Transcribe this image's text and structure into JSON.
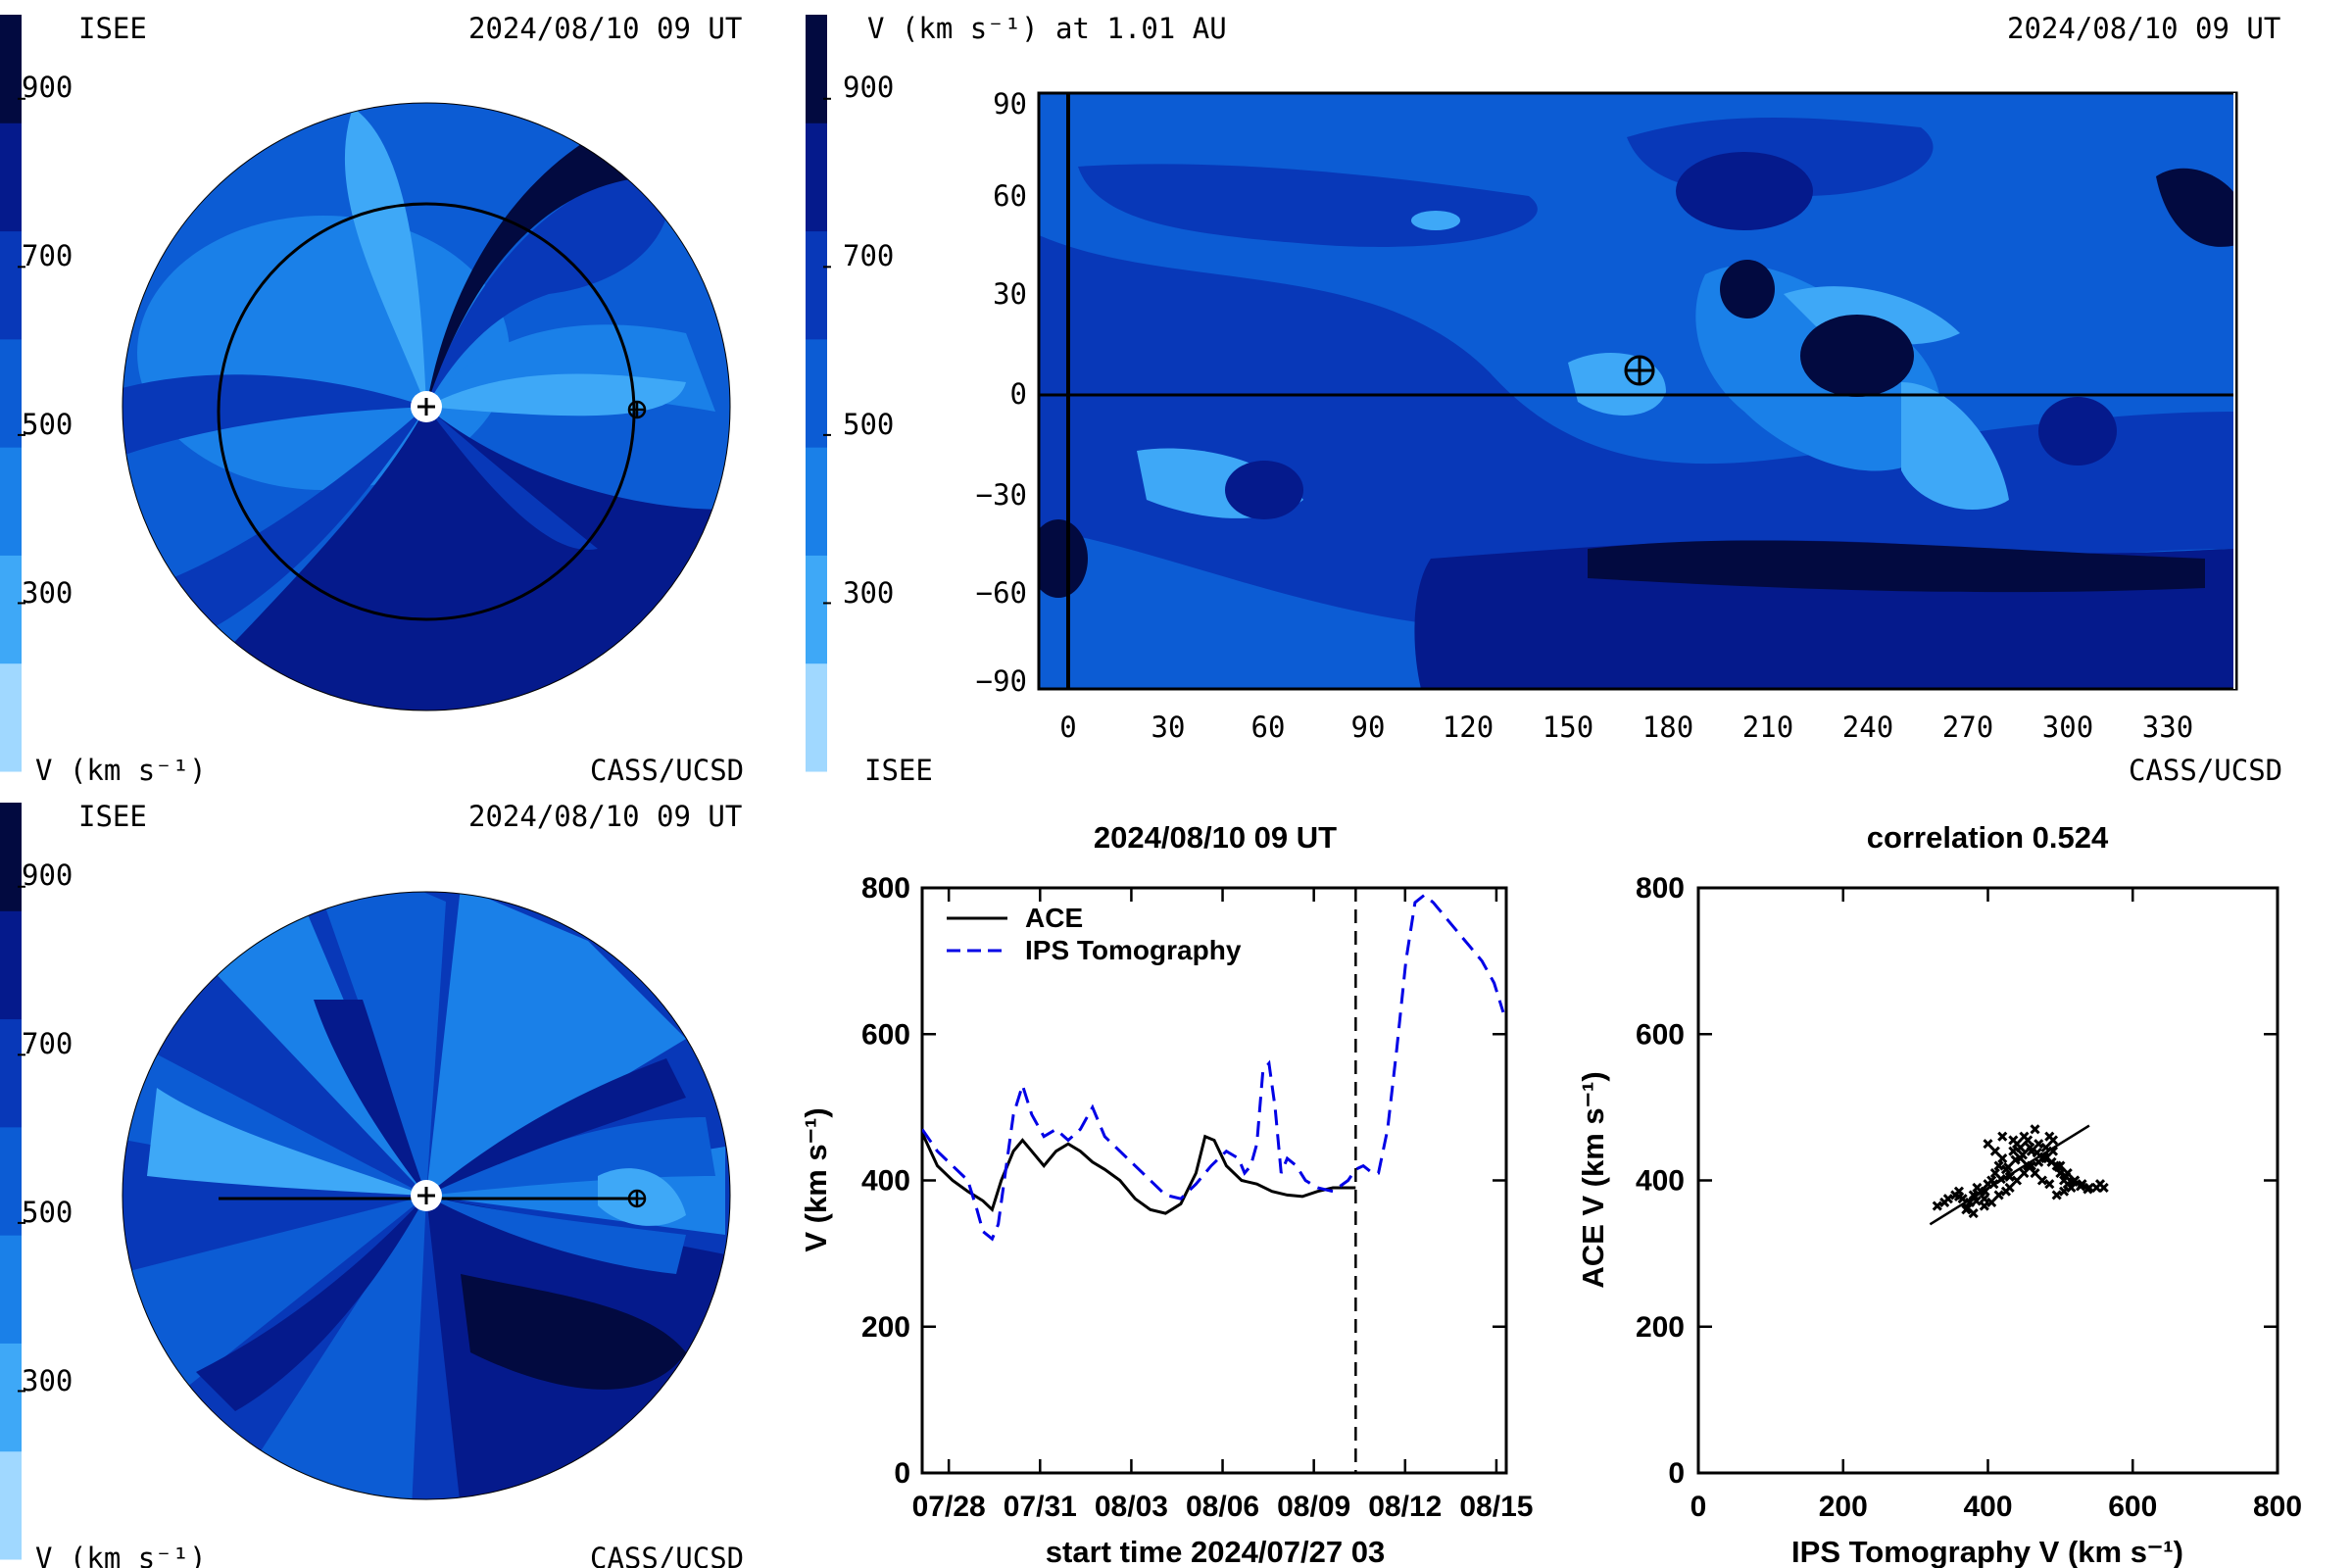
{
  "colors": {
    "scale": [
      "#a0d8ff",
      "#3ea8f7",
      "#1a80e8",
      "#0c5cd4",
      "#0838b8",
      "#051a8c",
      "#020a40"
    ],
    "ace_line": "#000000",
    "ips_line": "#0000e6"
  },
  "colorbar": {
    "ticks": [
      "900",
      "700",
      "500",
      "300"
    ],
    "tick_values": [
      900,
      700,
      500,
      300
    ],
    "range": [
      100,
      1000
    ],
    "unit_label": "V (km s⁻¹)"
  },
  "panel_ecliptic": {
    "left_label": "ISEE",
    "right_label": "2024/08/10 09 UT",
    "bottom_left": "V (km s⁻¹)",
    "bottom_right": "CASS/UCSD"
  },
  "panel_meridional": {
    "left_label": "ISEE",
    "right_label": "2024/08/10 09 UT",
    "bottom_left": "V (km s⁻¹)",
    "bottom_right": "CASS/UCSD"
  },
  "panel_map": {
    "title_left": "V (km s⁻¹) at 1.01 AU",
    "title_right": "2024/08/10 09 UT",
    "bottom_left": "ISEE",
    "bottom_right": "CASS/UCSD",
    "xticks": [
      "0",
      "30",
      "60",
      "90",
      "120",
      "150",
      "180",
      "210",
      "240",
      "270",
      "300",
      "330"
    ],
    "yticks": [
      "90",
      "60",
      "30",
      "0",
      "−30",
      "−60",
      "−90"
    ]
  },
  "chart_data": [
    {
      "type": "line",
      "title": "2024/08/10 09 UT",
      "xlabel": "start time 2024/07/27 03",
      "ylabel": "V (km s⁻¹)",
      "xtick_labels": [
        "07/28",
        "07/31",
        "08/03",
        "08/06",
        "08/09",
        "08/12",
        "08/15"
      ],
      "xtick_days": [
        0.875,
        3.875,
        6.875,
        9.875,
        12.875,
        15.875,
        18.875
      ],
      "yticks": [
        "0",
        "200",
        "400",
        "600",
        "800"
      ],
      "ylim": [
        0,
        800
      ],
      "xlim_days": [
        0,
        19.2
      ],
      "current_time_day": 14.25,
      "series": [
        {
          "name": "ACE",
          "style": "solid",
          "x": [
            0,
            0.5,
            1,
            1.5,
            2,
            2.3,
            2.6,
            3,
            3.3,
            3.6,
            4,
            4.4,
            4.8,
            5.2,
            5.6,
            6,
            6.5,
            7,
            7.5,
            8,
            8.5,
            9,
            9.3,
            9.6,
            10,
            10.5,
            11,
            11.5,
            12,
            12.5,
            13,
            13.5,
            14,
            14.25
          ],
          "y": [
            465,
            420,
            400,
            385,
            372,
            360,
            400,
            440,
            455,
            440,
            420,
            440,
            450,
            440,
            425,
            415,
            400,
            375,
            360,
            355,
            368,
            410,
            460,
            455,
            420,
            400,
            395,
            385,
            380,
            378,
            385,
            390,
            390,
            390
          ]
        },
        {
          "name": "IPS Tomography",
          "style": "dashed",
          "x": [
            0,
            0.5,
            1,
            1.5,
            1.8,
            2,
            2.3,
            2.5,
            2.8,
            3,
            3.3,
            3.6,
            4,
            4.4,
            4.8,
            5.2,
            5.6,
            6,
            6.5,
            7,
            7.5,
            8,
            8.5,
            9,
            9.5,
            10,
            10.4,
            10.6,
            10.8,
            11,
            11.2,
            11.4,
            11.6,
            11.8,
            12,
            12.3,
            12.6,
            13,
            13.5,
            14,
            14.25,
            14.5,
            14.8,
            15,
            15.3,
            15.6,
            15.9,
            16.2,
            16.5,
            16.8,
            17.2,
            17.6,
            18,
            18.4,
            18.8,
            19.1
          ],
          "y": [
            470,
            440,
            420,
            400,
            360,
            330,
            320,
            340,
            430,
            490,
            530,
            490,
            460,
            470,
            455,
            470,
            500,
            460,
            440,
            420,
            400,
            380,
            375,
            395,
            420,
            440,
            430,
            410,
            420,
            450,
            550,
            560,
            500,
            410,
            430,
            420,
            400,
            390,
            385,
            400,
            415,
            420,
            410,
            410,
            470,
            580,
            700,
            780,
            790,
            780,
            760,
            740,
            720,
            700,
            670,
            630
          ]
        }
      ]
    },
    {
      "type": "scatter",
      "title": "correlation 0.524",
      "xlabel": "IPS Tomography V (km s⁻¹)",
      "ylabel": "ACE V (km s⁻¹)",
      "xticks": [
        "0",
        "200",
        "400",
        "600",
        "800"
      ],
      "yticks": [
        "0",
        "200",
        "400",
        "600",
        "800"
      ],
      "xlim": [
        0,
        800
      ],
      "ylim": [
        0,
        800
      ],
      "fit_line": {
        "x": [
          320,
          540
        ],
        "y": [
          340,
          475
        ]
      },
      "points": {
        "x": [
          330,
          340,
          345,
          355,
          360,
          365,
          370,
          375,
          380,
          385,
          390,
          395,
          400,
          405,
          410,
          415,
          420,
          425,
          430,
          435,
          440,
          445,
          450,
          455,
          460,
          465,
          470,
          475,
          480,
          485,
          490,
          495,
          500,
          505,
          510,
          515,
          520,
          530,
          540,
          550,
          555,
          560,
          380,
          395,
          405,
          415,
          425,
          430,
          440,
          450,
          460,
          470,
          480,
          490,
          500,
          510,
          520,
          400,
          410,
          420,
          435,
          445,
          455,
          465,
          475,
          485,
          495,
          505,
          360,
          372,
          384,
          396,
          408,
          418,
          428,
          438,
          448,
          458,
          468,
          478,
          488,
          498,
          508,
          518,
          528,
          538
        ],
        "y": [
          365,
          370,
          375,
          380,
          385,
          375,
          360,
          370,
          380,
          390,
          385,
          375,
          395,
          400,
          410,
          420,
          430,
          415,
          405,
          440,
          450,
          445,
          460,
          455,
          440,
          470,
          450,
          430,
          445,
          460,
          455,
          420,
          410,
          400,
          395,
          390,
          400,
          395,
          390,
          390,
          395,
          390,
          355,
          365,
          370,
          380,
          385,
          390,
          400,
          410,
          420,
          425,
          430,
          440,
          420,
          410,
          400,
          450,
          440,
          460,
          455,
          430,
          420,
          410,
          400,
          395,
          380,
          385,
          378,
          362,
          372,
          385,
          395,
          402,
          418,
          428,
          435,
          445,
          438,
          432,
          425,
          418,
          405,
          398,
          392,
          388
        ]
      }
    }
  ]
}
